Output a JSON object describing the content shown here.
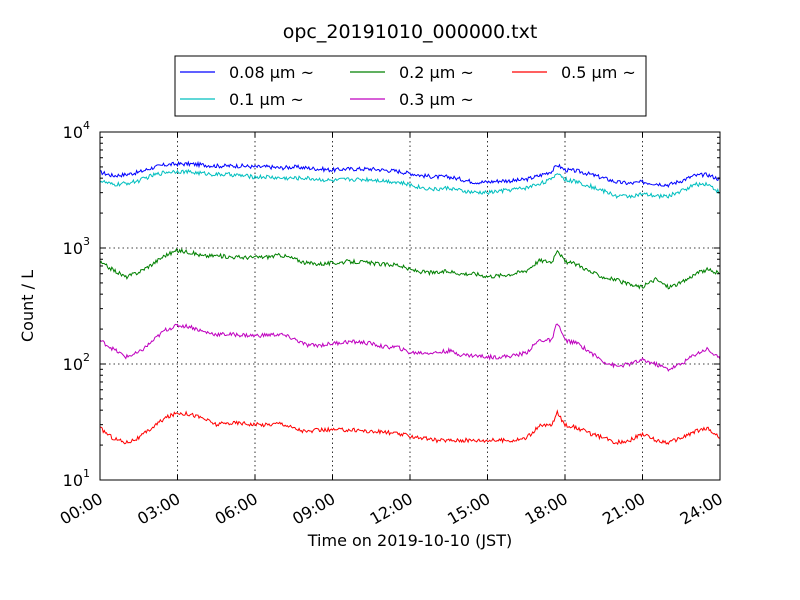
{
  "chart_data": {
    "type": "line",
    "title": "opc_20191010_000000.txt",
    "xlabel": "Time on 2019-10-10 (JST)",
    "ylabel": "Count / L",
    "x_ticks": [
      "00:00",
      "03:00",
      "06:00",
      "09:00",
      "12:00",
      "15:00",
      "18:00",
      "21:00",
      "24:00"
    ],
    "x_tick_hours": [
      0,
      3,
      6,
      9,
      12,
      15,
      18,
      21,
      24
    ],
    "xlim": [
      0,
      24
    ],
    "y_scale": "log",
    "ylim": [
      10,
      10000
    ],
    "y_ticks": [
      {
        "base": "10",
        "exp": "1",
        "value": 10
      },
      {
        "base": "10",
        "exp": "2",
        "value": 100
      },
      {
        "base": "10",
        "exp": "3",
        "value": 1000
      },
      {
        "base": "10",
        "exp": "4",
        "value": 10000
      }
    ],
    "grid": true,
    "legend": {
      "placement": "top",
      "columns": 3
    },
    "series": [
      {
        "name": "0.08 μm ~",
        "color": "#0000ff",
        "x": [
          0,
          0.5,
          1,
          1.5,
          2,
          2.5,
          3,
          3.5,
          4,
          4.5,
          5,
          5.5,
          6,
          6.5,
          7,
          7.5,
          8,
          8.5,
          9,
          9.5,
          10,
          10.5,
          11,
          11.5,
          12,
          12.5,
          13,
          13.5,
          14,
          14.5,
          15,
          15.5,
          16,
          16.5,
          17,
          17.5,
          17.7,
          18,
          18.5,
          19,
          19.5,
          20,
          20.5,
          21,
          21.5,
          22,
          22.5,
          23,
          23.5,
          24
        ],
        "y": [
          4500,
          4200,
          4300,
          4500,
          4900,
          5200,
          5300,
          5300,
          5200,
          5100,
          5100,
          5100,
          5000,
          5000,
          4900,
          5000,
          4900,
          4800,
          4700,
          4800,
          4800,
          4800,
          4700,
          4600,
          4400,
          4200,
          4100,
          4100,
          3900,
          3700,
          3700,
          3800,
          3800,
          3900,
          4200,
          4600,
          5200,
          4700,
          4600,
          4300,
          4000,
          3700,
          3600,
          3700,
          3600,
          3500,
          3800,
          4200,
          4300,
          3900
        ]
      },
      {
        "name": "0.1 μm ~",
        "color": "#00bfbf",
        "x": [
          0,
          0.5,
          1,
          1.5,
          2,
          2.5,
          3,
          3.5,
          4,
          4.5,
          5,
          5.5,
          6,
          6.5,
          7,
          7.5,
          8,
          8.5,
          9,
          9.5,
          10,
          10.5,
          11,
          11.5,
          12,
          12.5,
          13,
          13.5,
          14,
          14.5,
          15,
          15.5,
          16,
          16.5,
          17,
          17.5,
          17.7,
          18,
          18.5,
          19,
          19.5,
          20,
          20.5,
          21,
          21.5,
          22,
          22.5,
          23,
          23.5,
          24
        ],
        "y": [
          3800,
          3500,
          3600,
          3800,
          4200,
          4500,
          4600,
          4500,
          4400,
          4300,
          4300,
          4200,
          4100,
          4100,
          4000,
          4000,
          4000,
          3900,
          3800,
          3900,
          3900,
          3900,
          3800,
          3700,
          3500,
          3300,
          3200,
          3300,
          3100,
          3000,
          3000,
          3100,
          3200,
          3300,
          3600,
          3900,
          4500,
          3900,
          3700,
          3400,
          3100,
          2800,
          2800,
          2900,
          2800,
          2800,
          3100,
          3500,
          3600,
          3000
        ]
      },
      {
        "name": "0.2 μm ~",
        "color": "#008000",
        "x": [
          0,
          0.5,
          1,
          1.5,
          2,
          2.5,
          3,
          3.5,
          4,
          4.5,
          5,
          5.5,
          6,
          6.5,
          7,
          7.5,
          8,
          8.5,
          9,
          9.5,
          10,
          10.5,
          11,
          11.5,
          12,
          12.5,
          13,
          13.5,
          14,
          14.5,
          15,
          15.5,
          16,
          16.5,
          17,
          17.5,
          17.7,
          18,
          18.5,
          19,
          19.5,
          20,
          20.5,
          21,
          21.5,
          22,
          22.5,
          23,
          23.5,
          24
        ],
        "y": [
          750,
          650,
          560,
          620,
          720,
          860,
          950,
          920,
          850,
          860,
          840,
          830,
          830,
          840,
          870,
          810,
          740,
          730,
          740,
          760,
          760,
          740,
          720,
          720,
          650,
          620,
          610,
          630,
          600,
          600,
          570,
          580,
          600,
          640,
          780,
          760,
          980,
          760,
          720,
          620,
          560,
          530,
          480,
          460,
          540,
          460,
          500,
          590,
          650,
          600
        ]
      },
      {
        "name": "0.3 μm ~",
        "color": "#bf00bf",
        "x": [
          0,
          0.5,
          1,
          1.5,
          2,
          2.5,
          3,
          3.5,
          4,
          4.5,
          5,
          5.5,
          6,
          6.5,
          7,
          7.5,
          8,
          8.5,
          9,
          9.5,
          10,
          10.5,
          11,
          11.5,
          12,
          12.5,
          13,
          13.5,
          14,
          14.5,
          15,
          15.5,
          16,
          16.5,
          17,
          17.5,
          17.7,
          18,
          18.5,
          19,
          19.5,
          20,
          20.5,
          21,
          21.5,
          22,
          22.5,
          23,
          23.5,
          24
        ],
        "y": [
          160,
          135,
          115,
          125,
          155,
          195,
          215,
          210,
          190,
          180,
          180,
          178,
          175,
          178,
          180,
          165,
          145,
          145,
          150,
          155,
          155,
          150,
          140,
          140,
          125,
          125,
          125,
          130,
          120,
          118,
          115,
          115,
          118,
          125,
          160,
          160,
          230,
          160,
          150,
          125,
          105,
          95,
          100,
          108,
          100,
          90,
          100,
          120,
          135,
          110
        ]
      },
      {
        "name": "0.5 μm ~",
        "color": "#ff0000",
        "x": [
          0,
          0.5,
          1,
          1.5,
          2,
          2.5,
          3,
          3.5,
          4,
          4.5,
          5,
          5.5,
          6,
          6.5,
          7,
          7.5,
          8,
          8.5,
          9,
          9.5,
          10,
          10.5,
          11,
          11.5,
          12,
          12.5,
          13,
          13.5,
          14,
          14.5,
          15,
          15.5,
          16,
          16.5,
          17,
          17.5,
          17.7,
          18,
          18.5,
          19,
          19.5,
          20,
          20.5,
          21,
          21.5,
          22,
          22.5,
          23,
          23.5,
          24
        ],
        "y": [
          28,
          23,
          21,
          23,
          28,
          34,
          38,
          37,
          34,
          30,
          31,
          31,
          30,
          30,
          31,
          28,
          26,
          27,
          27,
          27,
          27,
          26,
          26,
          25,
          24,
          23,
          22,
          22,
          22,
          22,
          22,
          22,
          22,
          23,
          29,
          30,
          38,
          30,
          28,
          25,
          23,
          21,
          22,
          25,
          22,
          21,
          23,
          26,
          28,
          23
        ]
      }
    ]
  }
}
